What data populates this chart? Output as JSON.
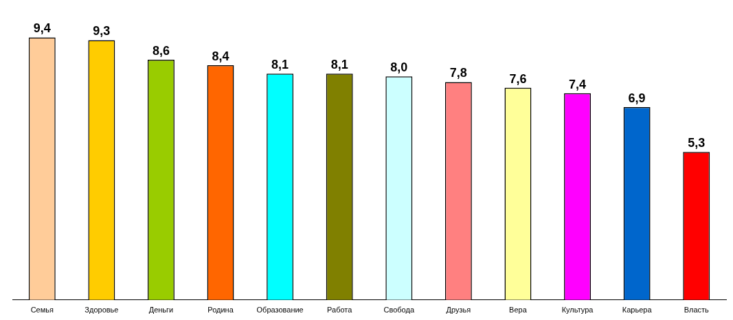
{
  "chart_data": {
    "type": "bar",
    "relative": false,
    "categories": [
      "Семья",
      "Здоровье",
      "Деньги",
      "Родина",
      "Образование",
      "Работа",
      "Свобода",
      "Друзья",
      "Вера",
      "Культура",
      "Карьера",
      "Власть"
    ],
    "values": [
      9.4,
      9.3,
      8.6,
      8.4,
      8.1,
      8.1,
      8.0,
      7.8,
      7.6,
      7.4,
      6.9,
      5.3
    ],
    "value_labels": [
      "9,4",
      "9,3",
      "8,6",
      "8,4",
      "8,1",
      "8,1",
      "8,0",
      "7,8",
      "7,6",
      "7,4",
      "6,9",
      "5,3"
    ],
    "colors": [
      "#ffcc99",
      "#ffcc00",
      "#99cc00",
      "#ff6600",
      "#00ffff",
      "#808000",
      "#ccffff",
      "#ff8080",
      "#ffff99",
      "#ff00ff",
      "#0066cc",
      "#ff0000"
    ],
    "legend": false,
    "grid": false
  }
}
